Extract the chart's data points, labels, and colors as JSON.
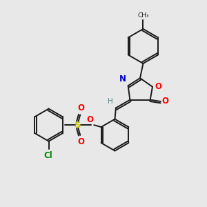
{
  "background_color": "#e8e8e8",
  "bond_color": "#1a1a1a",
  "figsize": [
    3.0,
    3.0
  ],
  "dpi": 100,
  "atoms": {
    "N": {
      "color": "#0000cc"
    },
    "O": {
      "color": "#ff0000"
    },
    "S": {
      "color": "#cccc00"
    },
    "Cl": {
      "color": "#008800"
    },
    "H": {
      "color": "#558888"
    },
    "C": {
      "color": "#1a1a1a"
    }
  },
  "lw": 1.4,
  "ring_lw": 1.4
}
